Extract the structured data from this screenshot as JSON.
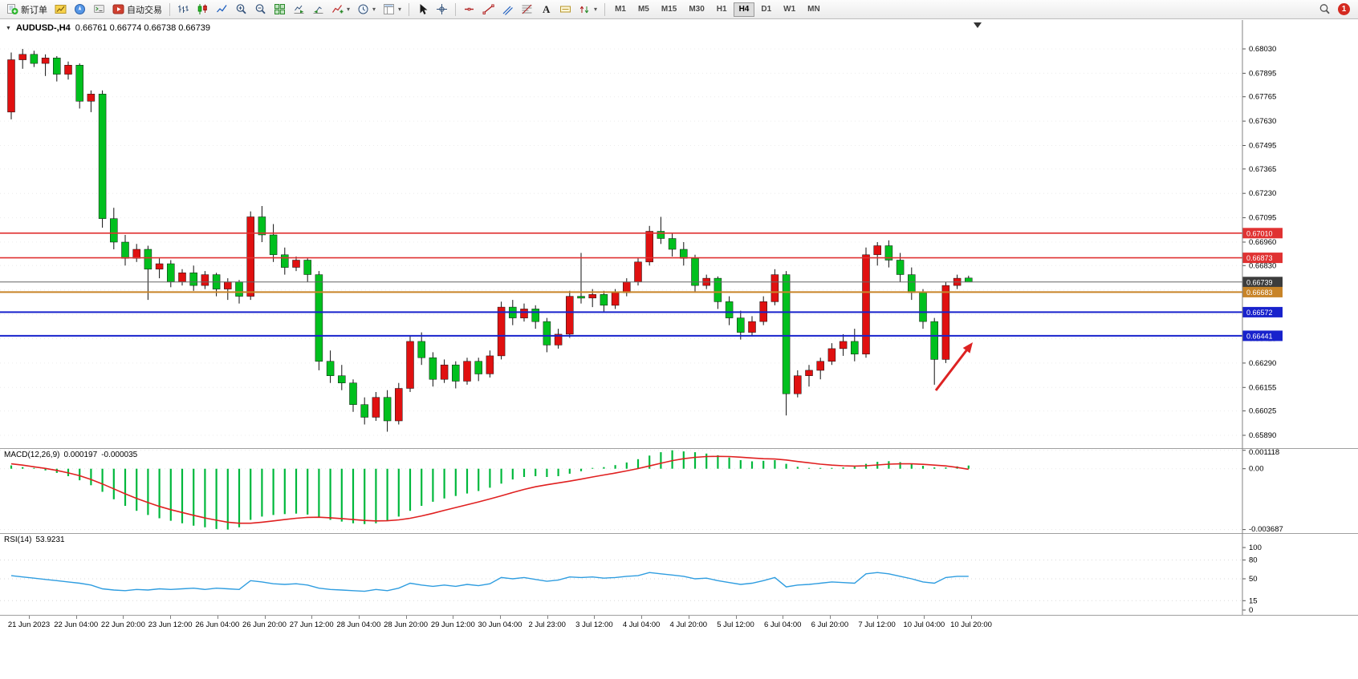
{
  "window": {
    "notification_badge": "1"
  },
  "toolbar": {
    "new_order_label": "新订单",
    "autotrading_label": "自动交易",
    "timeframes": [
      "M1",
      "M5",
      "M15",
      "M30",
      "H1",
      "H4",
      "D1",
      "W1",
      "MN"
    ],
    "active_timeframe": "H4"
  },
  "chart": {
    "title": "AUDUSD-,H4",
    "ohlc_text": "0.66761 0.66774 0.66738 0.66739",
    "candle_colors": {
      "up": "#e01010",
      "down": "#00c01e"
    },
    "price_range": {
      "top": 0.6819,
      "bottom": 0.65819
    },
    "price_axis_labels": [
      "0.68030",
      "0.67895",
      "0.67765",
      "0.67630",
      "0.67495",
      "0.67365",
      "0.67230",
      "0.67095",
      "0.66960",
      "0.66830",
      "0.66695",
      "0.66560",
      "0.66425",
      "0.66290",
      "0.66155",
      "0.66025",
      "0.65890"
    ],
    "time_axis_labels": [
      "21 Jun 2023",
      "22 Jun 04:00",
      "22 Jun 20:00",
      "23 Jun 12:00",
      "26 Jun 04:00",
      "26 Jun 20:00",
      "27 Jun 12:00",
      "28 Jun 04:00",
      "28 Jun 20:00",
      "29 Jun 12:00",
      "30 Jun 04:00",
      "2 Jul 23:00",
      "3 Jul 12:00",
      "4 Jul 04:00",
      "4 Jul 20:00",
      "5 Jul 12:00",
      "6 Jul 04:00",
      "6 Jul 20:00",
      "7 Jul 12:00",
      "10 Jul 04:00",
      "10 Jul 20:00"
    ],
    "hlines": [
      {
        "label": "0.67010",
        "price": 0.6701,
        "color": "#e03232",
        "width": 1.6
      },
      {
        "label": "0.66873",
        "price": 0.66873,
        "color": "#e03232",
        "width": 1.6
      },
      {
        "label": "0.66739",
        "price": 0.66739,
        "color": "#666666",
        "tag_bg": "#3c3c3c",
        "width": 1
      },
      {
        "label": "0.66683",
        "price": 0.66683,
        "color": "#c88428",
        "width": 2
      },
      {
        "label": "0.66572",
        "price": 0.66572,
        "color": "#1822cc",
        "width": 2
      },
      {
        "label": "0.66441",
        "price": 0.66441,
        "color": "#1822cc",
        "width": 2
      }
    ],
    "arrow_annotation": {
      "color": "#dd2222"
    }
  },
  "macd": {
    "label": "MACD(12,26,9)",
    "value_main": "0.000197",
    "value_signal": "-0.000035",
    "axis_labels": [
      "0.001118",
      "0.00",
      "-0.003687"
    ],
    "range": {
      "top": 0.00125,
      "bottom": -0.0039
    },
    "colors": {
      "histogram": "#00b83c",
      "signal": "#e02020"
    }
  },
  "rsi": {
    "label": "RSI(14)",
    "value": "53.9231",
    "axis_labels": [
      "100",
      "80",
      "50",
      "15",
      "0"
    ],
    "axis_values": [
      100,
      80,
      50,
      15,
      0
    ],
    "level_values": [
      80,
      50,
      15
    ],
    "color": "#2f9de0"
  },
  "chart_data": [
    {
      "type": "candlestick",
      "title": "AUDUSD- H4",
      "candles": [
        [
          0.6768,
          0.6801,
          0.6764,
          0.6797
        ],
        [
          0.6797,
          0.6803,
          0.6792,
          0.68
        ],
        [
          0.68,
          0.6802,
          0.6793,
          0.6795
        ],
        [
          0.6795,
          0.68,
          0.6788,
          0.6798
        ],
        [
          0.6798,
          0.6799,
          0.6785,
          0.6789
        ],
        [
          0.6789,
          0.6796,
          0.6786,
          0.6794
        ],
        [
          0.6794,
          0.6795,
          0.677,
          0.6774
        ],
        [
          0.6774,
          0.678,
          0.6768,
          0.6778
        ],
        [
          0.6778,
          0.678,
          0.6704,
          0.6709
        ],
        [
          0.6709,
          0.6715,
          0.6692,
          0.6696
        ],
        [
          0.6696,
          0.67,
          0.6683,
          0.6687
        ],
        [
          0.6687,
          0.6695,
          0.6685,
          0.6692
        ],
        [
          0.6692,
          0.6694,
          0.6664,
          0.6681
        ],
        [
          0.6681,
          0.6687,
          0.6676,
          0.6684
        ],
        [
          0.6684,
          0.6686,
          0.6671,
          0.6674
        ],
        [
          0.6674,
          0.6681,
          0.6672,
          0.6679
        ],
        [
          0.6679,
          0.6683,
          0.6669,
          0.6672
        ],
        [
          0.6672,
          0.668,
          0.667,
          0.6678
        ],
        [
          0.6678,
          0.6679,
          0.6666,
          0.667
        ],
        [
          0.667,
          0.6676,
          0.6664,
          0.6674
        ],
        [
          0.6674,
          0.6675,
          0.6662,
          0.6666
        ],
        [
          0.6666,
          0.6713,
          0.6664,
          0.671
        ],
        [
          0.671,
          0.6716,
          0.6696,
          0.67
        ],
        [
          0.67,
          0.6706,
          0.6685,
          0.6689
        ],
        [
          0.6689,
          0.6693,
          0.6678,
          0.6682
        ],
        [
          0.6682,
          0.6688,
          0.668,
          0.6686
        ],
        [
          0.6686,
          0.6687,
          0.6674,
          0.6678
        ],
        [
          0.6678,
          0.668,
          0.6625,
          0.663
        ],
        [
          0.663,
          0.6636,
          0.6618,
          0.6622
        ],
        [
          0.6622,
          0.6628,
          0.6614,
          0.6618
        ],
        [
          0.6618,
          0.662,
          0.6602,
          0.6606
        ],
        [
          0.6606,
          0.661,
          0.6595,
          0.6599
        ],
        [
          0.6599,
          0.6613,
          0.6597,
          0.661
        ],
        [
          0.661,
          0.6614,
          0.6591,
          0.6597
        ],
        [
          0.6597,
          0.6618,
          0.6595,
          0.6615
        ],
        [
          0.6615,
          0.6644,
          0.6613,
          0.6641
        ],
        [
          0.6641,
          0.6646,
          0.6628,
          0.6632
        ],
        [
          0.6632,
          0.6635,
          0.6616,
          0.662
        ],
        [
          0.662,
          0.6631,
          0.6618,
          0.6628
        ],
        [
          0.6628,
          0.663,
          0.6615,
          0.6619
        ],
        [
          0.6619,
          0.6632,
          0.6617,
          0.663
        ],
        [
          0.663,
          0.6632,
          0.6619,
          0.6623
        ],
        [
          0.6623,
          0.6636,
          0.6621,
          0.6633
        ],
        [
          0.6633,
          0.6663,
          0.6631,
          0.666
        ],
        [
          0.666,
          0.6664,
          0.665,
          0.6654
        ],
        [
          0.6654,
          0.6662,
          0.6652,
          0.6659
        ],
        [
          0.6659,
          0.6661,
          0.6648,
          0.6652
        ],
        [
          0.6652,
          0.6654,
          0.6635,
          0.6639
        ],
        [
          0.6639,
          0.6648,
          0.6637,
          0.6645
        ],
        [
          0.6645,
          0.6669,
          0.6643,
          0.6666
        ],
        [
          0.6666,
          0.669,
          0.6662,
          0.6665
        ],
        [
          0.6665,
          0.667,
          0.666,
          0.6667
        ],
        [
          0.6667,
          0.6669,
          0.6657,
          0.6661
        ],
        [
          0.6661,
          0.667,
          0.6659,
          0.6668
        ],
        [
          0.6668,
          0.6676,
          0.6666,
          0.6674
        ],
        [
          0.6674,
          0.6687,
          0.6672,
          0.6685
        ],
        [
          0.6685,
          0.6705,
          0.6683,
          0.6702
        ],
        [
          0.6702,
          0.671,
          0.6695,
          0.6698
        ],
        [
          0.6698,
          0.6701,
          0.6688,
          0.6692
        ],
        [
          0.6692,
          0.6696,
          0.6683,
          0.6687
        ],
        [
          0.6687,
          0.6689,
          0.6668,
          0.6672
        ],
        [
          0.6672,
          0.6678,
          0.667,
          0.6676
        ],
        [
          0.6676,
          0.6677,
          0.6659,
          0.6663
        ],
        [
          0.6663,
          0.6666,
          0.665,
          0.6654
        ],
        [
          0.6654,
          0.6658,
          0.6642,
          0.6646
        ],
        [
          0.6646,
          0.6655,
          0.6644,
          0.6652
        ],
        [
          0.6652,
          0.6666,
          0.665,
          0.6663
        ],
        [
          0.6663,
          0.6681,
          0.6661,
          0.6678
        ],
        [
          0.6678,
          0.668,
          0.66,
          0.6612
        ],
        [
          0.6612,
          0.6625,
          0.661,
          0.6622
        ],
        [
          0.6622,
          0.6628,
          0.6616,
          0.6625
        ],
        [
          0.6625,
          0.6632,
          0.662,
          0.663
        ],
        [
          0.663,
          0.664,
          0.6628,
          0.6637
        ],
        [
          0.6637,
          0.6645,
          0.6633,
          0.6641
        ],
        [
          0.6641,
          0.6648,
          0.663,
          0.6634
        ],
        [
          0.6634,
          0.6693,
          0.6632,
          0.6689
        ],
        [
          0.6689,
          0.6696,
          0.6683,
          0.6694
        ],
        [
          0.6694,
          0.6697,
          0.6682,
          0.6686
        ],
        [
          0.6686,
          0.669,
          0.6674,
          0.6678
        ],
        [
          0.6678,
          0.6682,
          0.6664,
          0.6668
        ],
        [
          0.6668,
          0.667,
          0.6648,
          0.6652
        ],
        [
          0.6652,
          0.6654,
          0.6617,
          0.6631
        ],
        [
          0.6631,
          0.6674,
          0.6629,
          0.6672
        ],
        [
          0.6672,
          0.6678,
          0.667,
          0.6676
        ],
        [
          0.66761,
          0.66774,
          0.66738,
          0.66739
        ]
      ]
    },
    {
      "type": "bar",
      "name": "MACD(12,26,9) histogram",
      "ylim": [
        -0.0039,
        0.00125
      ],
      "values": [
        0.0002,
        0.0001,
        0,
        -0.0001,
        -0.00025,
        -0.00045,
        -0.0007,
        -0.001,
        -0.0014,
        -0.00185,
        -0.00225,
        -0.00255,
        -0.0028,
        -0.003,
        -0.00315,
        -0.0033,
        -0.00345,
        -0.00355,
        -0.00365,
        -0.003687,
        -0.00355,
        -0.0031,
        -0.0029,
        -0.0028,
        -0.00275,
        -0.00272,
        -0.00278,
        -0.00295,
        -0.0031,
        -0.0032,
        -0.0033,
        -0.00335,
        -0.0033,
        -0.00315,
        -0.0029,
        -0.00255,
        -0.00225,
        -0.002,
        -0.0018,
        -0.00165,
        -0.0015,
        -0.00135,
        -0.00115,
        -0.0009,
        -0.00065,
        -0.0005,
        -0.00045,
        -0.0005,
        -0.00045,
        -0.0003,
        -0.00015,
        0,
        0.0001,
        0.00022,
        0.00038,
        0.00058,
        0.0008,
        0.001,
        0.001118,
        0.00105,
        0.001,
        0.00092,
        0.00082,
        0.00068,
        0.00052,
        0.00045,
        0.00048,
        0.00052,
        0.0003,
        0.00012,
        5e-05,
        2e-05,
        4e-05,
        8e-05,
        0.00012,
        0.0003,
        0.00042,
        0.00046,
        0.0004,
        0.0003,
        0.00018,
        8e-05,
        8e-05,
        0.00014,
        0.000197
      ],
      "signal": [
        0.0003,
        0.00022,
        0.00012,
        2e-05,
        -0.0001,
        -0.00025,
        -0.00042,
        -0.00065,
        -0.00092,
        -0.00122,
        -0.00152,
        -0.0018,
        -0.00205,
        -0.00228,
        -0.00248,
        -0.00265,
        -0.00282,
        -0.00298,
        -0.00312,
        -0.00324,
        -0.0033,
        -0.0033,
        -0.00324,
        -0.00316,
        -0.00308,
        -0.003,
        -0.00295,
        -0.00294,
        -0.00297,
        -0.00302,
        -0.00308,
        -0.00313,
        -0.00316,
        -0.00315,
        -0.0031,
        -0.003,
        -0.00286,
        -0.0027,
        -0.00252,
        -0.00235,
        -0.00218,
        -0.00201,
        -0.00183,
        -0.00164,
        -0.00144,
        -0.00125,
        -0.00109,
        -0.00097,
        -0.00086,
        -0.00075,
        -0.00063,
        -0.0005,
        -0.00038,
        -0.00026,
        -0.00013,
        1e-05,
        0.00017,
        0.00033,
        0.00049,
        0.00061,
        0.00069,
        0.00074,
        0.00075,
        0.00074,
        0.0007,
        0.00065,
        0.00061,
        0.00059,
        0.00053,
        0.00044,
        0.00036,
        0.00028,
        0.00022,
        0.00018,
        0.00016,
        0.00018,
        0.00023,
        0.00028,
        0.0003,
        0.0003,
        0.00027,
        0.00022,
        0.00017,
        8e-05,
        -3.5e-05
      ]
    },
    {
      "type": "line",
      "name": "RSI(14)",
      "ylim": [
        0,
        100
      ],
      "values": [
        55,
        53,
        51,
        49,
        47,
        45,
        43,
        40,
        34,
        32,
        31,
        33,
        32,
        34,
        33,
        34,
        35,
        33,
        35,
        34,
        33,
        47,
        45,
        42,
        41,
        42,
        40,
        35,
        33,
        32,
        31,
        30,
        33,
        31,
        35,
        43,
        40,
        38,
        40,
        38,
        41,
        39,
        42,
        52,
        50,
        52,
        49,
        46,
        48,
        53,
        52,
        53,
        51,
        52,
        54,
        55,
        60,
        58,
        56,
        54,
        50,
        51,
        47,
        44,
        41,
        43,
        47,
        52,
        37,
        40,
        41,
        43,
        45,
        44,
        43,
        58,
        60,
        58,
        54,
        50,
        45,
        43,
        52,
        54,
        53.9231
      ]
    }
  ]
}
